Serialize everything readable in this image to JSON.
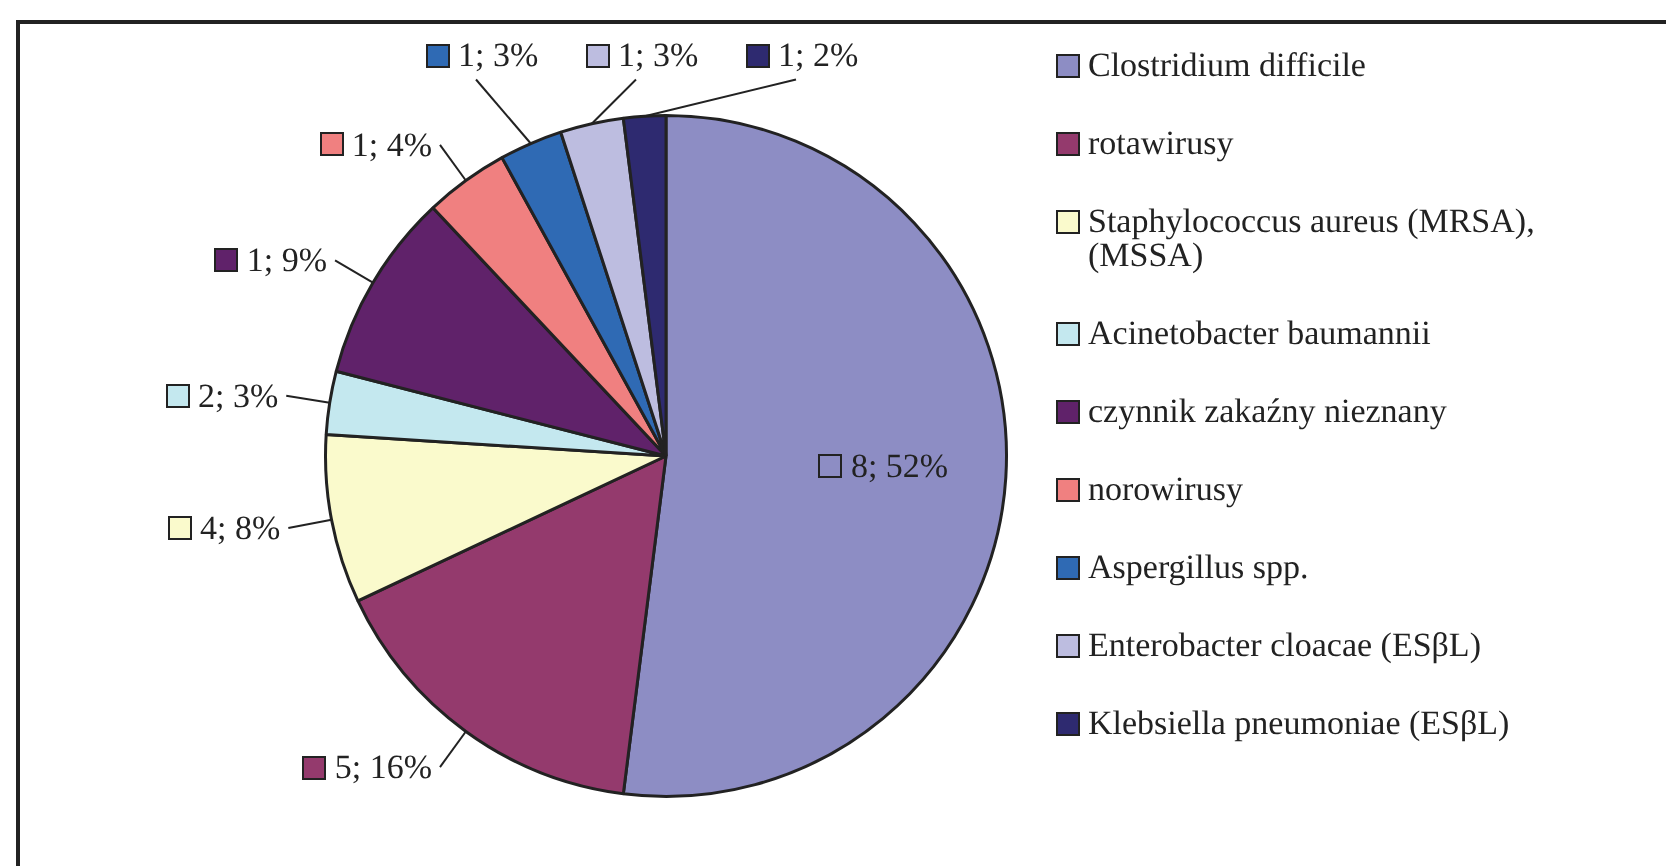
{
  "chart_data": {
    "type": "pie",
    "categories": [
      "Clostridium difficile",
      "rotawirusy",
      "Staphylococcus aureus (MRSA), (MSSA)",
      "Acinetobacter baumannii",
      "czynnik zakaźny nieznany",
      "norowirusy",
      "Aspergillus spp.",
      "Enterobacter cloacae (ESβL)",
      "Klebsiella pneumoniae (ESβL)"
    ],
    "values": [
      52,
      16,
      8,
      3,
      9,
      4,
      3,
      3,
      2
    ],
    "colors": [
      "#8d8dc4",
      "#943a6d",
      "#fafacc",
      "#c4e8ef",
      "#60226a",
      "#f08080",
      "#2f6ab4",
      "#bdbde0",
      "#2e2a70"
    ],
    "value_labels": [
      "8; 52%",
      "5; 16%",
      "4; 8%",
      "2; 3%",
      "1; 9%",
      "1; 4%",
      "1; 3%",
      "1; 3%",
      "1; 2%"
    ],
    "legend": "right"
  }
}
